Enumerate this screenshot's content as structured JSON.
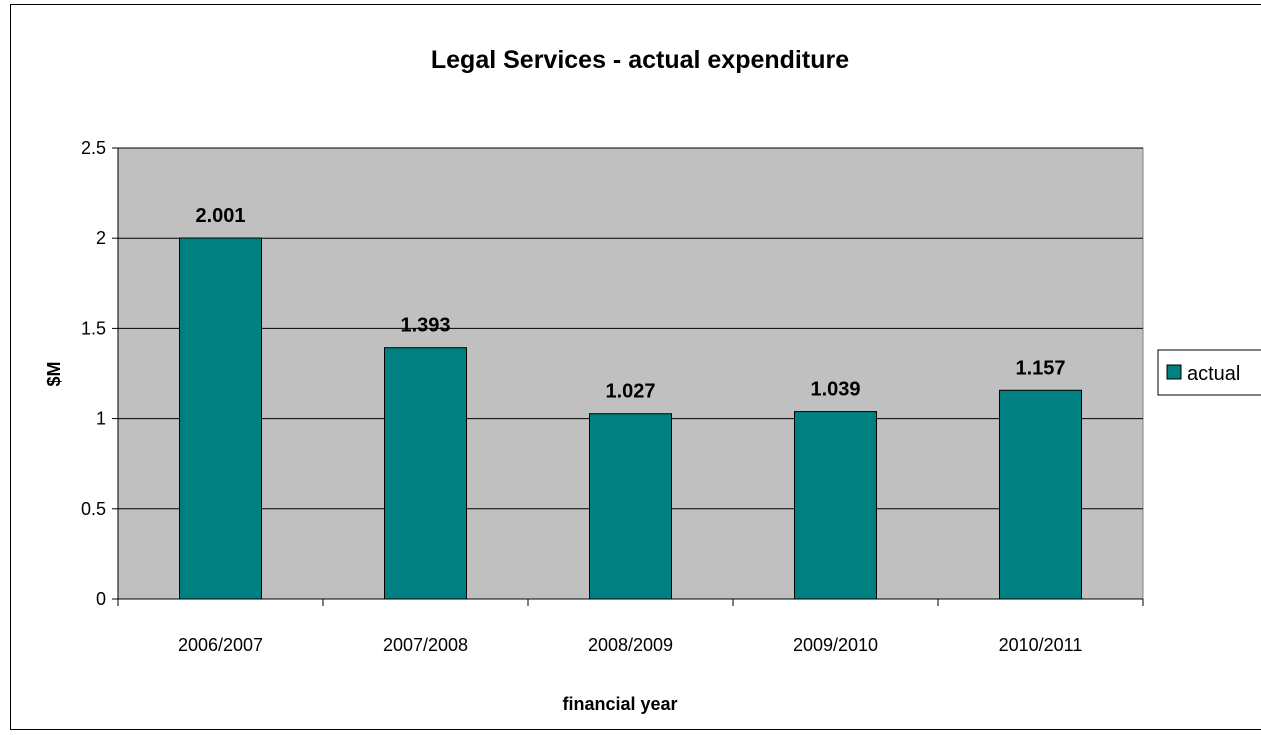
{
  "chart_data": {
    "type": "bar",
    "title": "Legal Services - actual expenditure",
    "xlabel": "financial year",
    "ylabel": "$M",
    "categories": [
      "2006/2007",
      "2007/2008",
      "2008/2009",
      "2009/2010",
      "2010/2011"
    ],
    "series": [
      {
        "name": "actual",
        "values": [
          2.001,
          1.393,
          1.027,
          1.039,
          1.157
        ]
      }
    ],
    "data_labels": [
      "2.001",
      "1.393",
      "1.027",
      "1.039",
      "1.157"
    ],
    "ylim": [
      0,
      2.5
    ],
    "yticks": [
      "0",
      "0.5",
      "1",
      "1.5",
      "2",
      "2.5"
    ],
    "grid": true,
    "legend_position": "right",
    "colors": {
      "bar": "#008080",
      "plot_background": "#c0c0c0",
      "gridline": "#000000"
    }
  }
}
